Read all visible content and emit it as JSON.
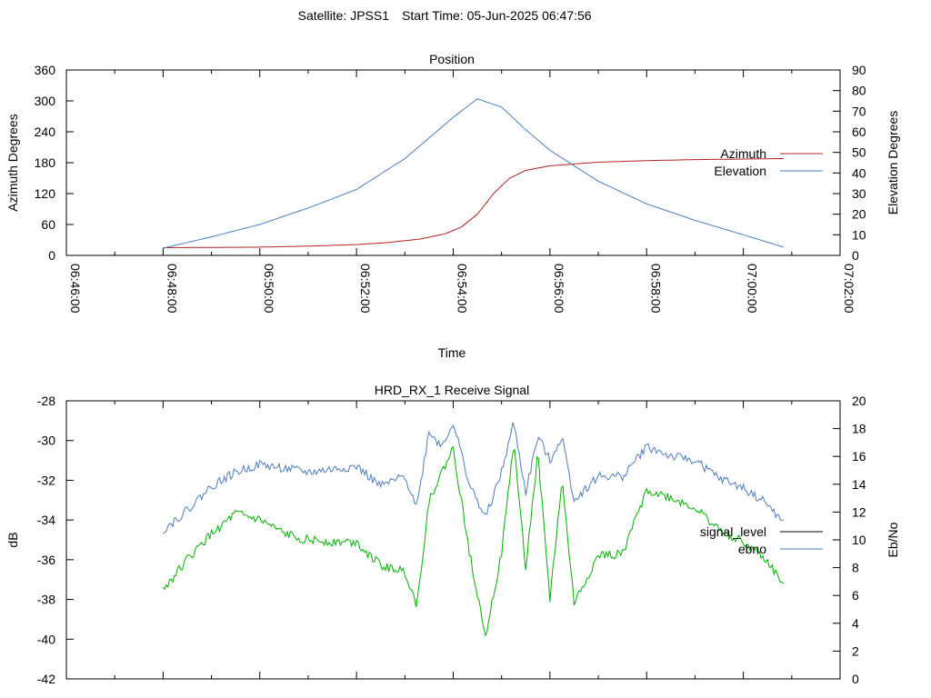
{
  "header": {
    "satellite_label": "Satellite: JPSS1",
    "start_time_label": "Start Time: 05-Jun-2025 06:47:56"
  },
  "colors": {
    "azimuth": "#b22222",
    "elevation": "#4f7dbf",
    "signal_level": "#000000",
    "ebno": "#4f7dbf",
    "green_trace": "#00b000"
  },
  "chart_data": [
    {
      "type": "line",
      "title": "Position",
      "xlabel": "Time",
      "ylabel": "Azimuth Degrees",
      "y2label": "Elevation Degrees",
      "xlim": [
        "06:46:00",
        "07:02:00"
      ],
      "ylim": [
        0,
        360
      ],
      "y2lim": [
        0,
        90
      ],
      "x_ticks": [
        "06:46:00",
        "06:48:00",
        "06:50:00",
        "06:52:00",
        "06:54:00",
        "06:56:00",
        "06:58:00",
        "07:00:00",
        "07:02:00"
      ],
      "y_ticks": [
        "0",
        "60",
        "120",
        "180",
        "240",
        "300",
        "360"
      ],
      "y2_ticks": [
        "0",
        "10",
        "20",
        "30",
        "40",
        "50",
        "60",
        "70",
        "80",
        "90"
      ],
      "legend_position": "right",
      "series": [
        {
          "name": "Azimuth",
          "axis": "y",
          "x": [
            "06:48:00",
            "06:49:00",
            "06:50:00",
            "06:51:00",
            "06:52:00",
            "06:52:40",
            "06:53:20",
            "06:53:50",
            "06:54:10",
            "06:54:30",
            "06:54:50",
            "06:55:10",
            "06:55:30",
            "06:56:00",
            "06:57:00",
            "06:58:00",
            "06:59:00",
            "07:00:00",
            "07:00:50"
          ],
          "values": [
            15,
            15.5,
            16,
            18,
            21,
            25,
            32,
            42,
            55,
            80,
            120,
            150,
            165,
            174,
            181,
            184,
            186,
            187,
            188
          ]
        },
        {
          "name": "Elevation",
          "axis": "y2",
          "x": [
            "06:48:00",
            "06:49:00",
            "06:50:00",
            "06:51:00",
            "06:52:00",
            "06:53:00",
            "06:54:00",
            "06:54:30",
            "06:55:00",
            "06:55:30",
            "06:56:00",
            "06:57:00",
            "06:58:00",
            "06:59:00",
            "07:00:00",
            "07:00:50"
          ],
          "values": [
            3.5,
            9,
            15,
            23,
            32,
            47,
            67,
            76,
            72,
            61,
            51,
            36,
            25,
            17,
            10,
            4
          ]
        }
      ]
    },
    {
      "type": "line",
      "title": "HRD_RX_1 Receive Signal",
      "ylabel": "dB",
      "y2label": "Eb/No",
      "ylim": [
        -42,
        -28
      ],
      "y2lim": [
        0,
        20
      ],
      "y_ticks": [
        "-28",
        "-30",
        "-32",
        "-34",
        "-36",
        "-38",
        "-40",
        "-42"
      ],
      "y2_ticks": [
        "0",
        "2",
        "4",
        "6",
        "8",
        "10",
        "12",
        "14",
        "16",
        "18",
        "20"
      ],
      "legend_position": "right",
      "series": [
        {
          "name": "signal_level",
          "axis": "y",
          "x": [],
          "values": []
        },
        {
          "name": "ebno",
          "axis": "y",
          "x": [
            "06:48:00",
            "06:48:30",
            "06:49:00",
            "06:49:30",
            "06:50:00",
            "06:51:00",
            "06:52:00",
            "06:52:30",
            "06:53:00",
            "06:53:15",
            "06:53:30",
            "06:53:45",
            "06:54:00",
            "06:54:20",
            "06:54:40",
            "06:55:00",
            "06:55:15",
            "06:55:30",
            "06:55:45",
            "06:56:00",
            "06:56:15",
            "06:56:30",
            "06:57:00",
            "06:57:30",
            "06:58:00",
            "06:58:30",
            "06:59:00",
            "06:59:30",
            "07:00:00",
            "07:00:30",
            "07:00:50"
          ],
          "values": [
            -34.5,
            -33.5,
            -32.3,
            -31.6,
            -31.2,
            -31.6,
            -31.3,
            -32.3,
            -31.8,
            -33.3,
            -29.5,
            -30.3,
            -29.1,
            -32.2,
            -33.9,
            -31.6,
            -29.1,
            -32.6,
            -29.8,
            -31.0,
            -29.8,
            -33.0,
            -31.8,
            -31.8,
            -30.3,
            -30.8,
            -31.0,
            -31.9,
            -32.4,
            -33.2,
            -34.2
          ]
        },
        {
          "name": "",
          "axis": "y",
          "x": [
            "06:48:00",
            "06:48:30",
            "06:49:00",
            "06:49:30",
            "06:50:00",
            "06:50:30",
            "06:51:00",
            "06:51:30",
            "06:52:00",
            "06:52:30",
            "06:53:00",
            "06:53:15",
            "06:53:30",
            "06:53:45",
            "06:54:00",
            "06:54:20",
            "06:54:40",
            "06:55:00",
            "06:55:15",
            "06:55:30",
            "06:55:45",
            "06:56:00",
            "06:56:15",
            "06:56:30",
            "06:57:00",
            "06:57:30",
            "06:58:00",
            "06:58:30",
            "06:59:00",
            "06:59:30",
            "07:00:00",
            "07:00:30",
            "07:00:50"
          ],
          "values": [
            -37.5,
            -36.0,
            -34.7,
            -33.7,
            -34.0,
            -34.7,
            -35.0,
            -35.1,
            -35.1,
            -36.3,
            -36.6,
            -38.3,
            -33.0,
            -31.7,
            -30.4,
            -35.6,
            -39.8,
            -35.7,
            -30.1,
            -36.4,
            -30.6,
            -38.0,
            -32.0,
            -38.2,
            -35.8,
            -35.7,
            -32.5,
            -32.9,
            -33.4,
            -34.5,
            -35.1,
            -36.1,
            -37.3
          ]
        }
      ]
    }
  ]
}
